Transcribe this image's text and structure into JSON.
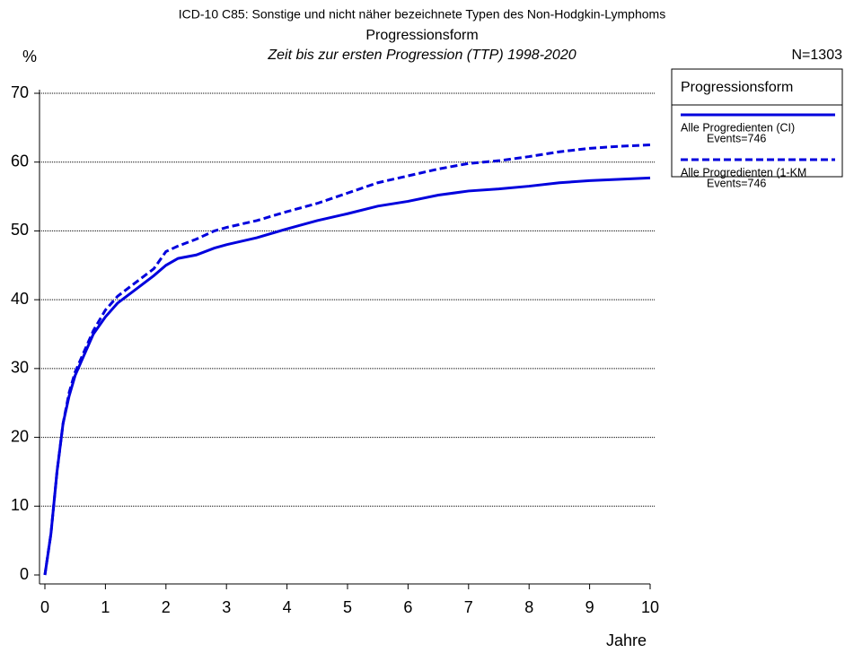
{
  "chart_data": {
    "type": "line",
    "title": "ICD-10 C85: Sonstige und nicht näher bezeichnete Typen des Non-Hodgkin-Lymphoms",
    "subtitle": "Progressionsform",
    "subtitle2": "Zeit bis zur ersten Progression (TTP) 1998-2020",
    "y_label": "%",
    "x_label": "Jahre",
    "n_label": "N=1303",
    "legend_title": "Progressionsform",
    "x": [
      0,
      0.1,
      0.2,
      0.3,
      0.4,
      0.5,
      0.6,
      0.8,
      1,
      1.2,
      1.5,
      1.8,
      2,
      2.2,
      2.5,
      2.8,
      3,
      3.5,
      4,
      4.5,
      5,
      5.5,
      6,
      6.5,
      7,
      7.5,
      8,
      8.5,
      9,
      9.5,
      10
    ],
    "series": [
      {
        "name": "Alle Progredienten (CI)",
        "events": "Events=746",
        "color": "#0000dd",
        "line_style": "solid",
        "values": [
          0,
          6,
          15,
          22,
          26,
          29,
          31,
          35,
          37.5,
          39.5,
          41.5,
          43.5,
          45,
          46,
          46.5,
          47.5,
          48,
          49,
          50.3,
          51.5,
          52.5,
          53.6,
          54.3,
          55.2,
          55.8,
          56.1,
          56.5,
          57,
          57.3,
          57.5,
          57.7
        ]
      },
      {
        "name": "Alle Progredienten (1-KM",
        "events": "Events=746",
        "color": "#0000dd",
        "line_style": "dashed",
        "values": [
          0,
          6,
          15,
          22,
          26.5,
          29.5,
          31.5,
          35.5,
          38.5,
          40.5,
          42.5,
          44.5,
          47,
          47.8,
          48.8,
          50,
          50.5,
          51.5,
          52.8,
          54,
          55.5,
          57,
          58,
          59,
          59.8,
          60.2,
          60.8,
          61.5,
          62,
          62.3,
          62.5
        ]
      }
    ],
    "xlim": [
      0,
      10
    ],
    "xticks": [
      0,
      1,
      2,
      3,
      4,
      5,
      6,
      7,
      8,
      9,
      10
    ],
    "ylim": [
      0,
      70
    ],
    "yticks": [
      0,
      10,
      20,
      30,
      40,
      50,
      60,
      70
    ],
    "grid": true
  }
}
